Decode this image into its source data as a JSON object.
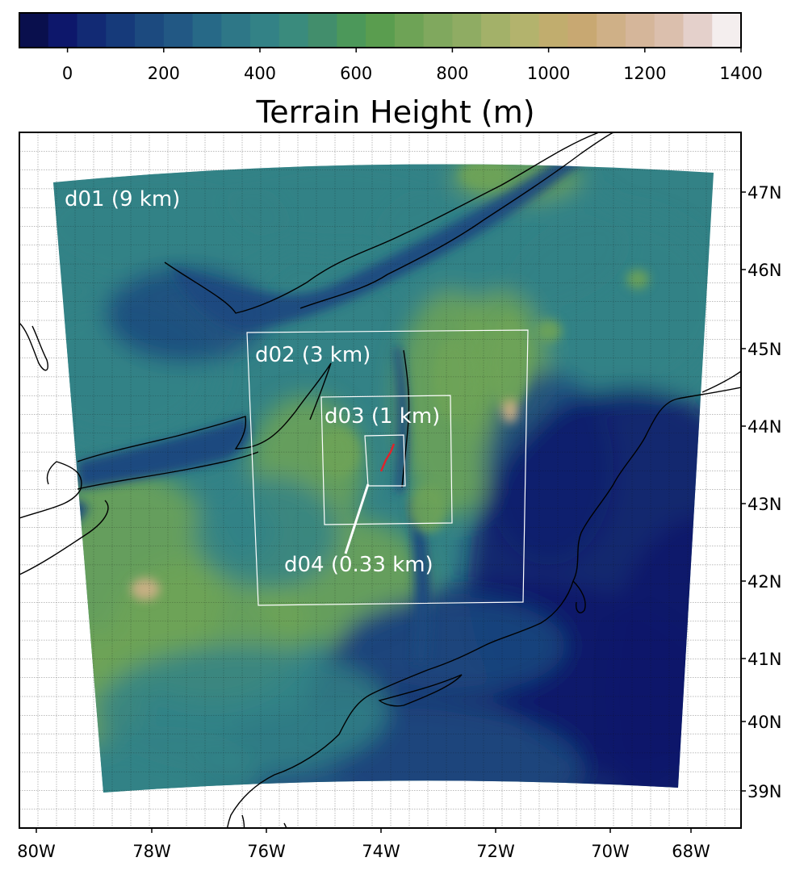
{
  "colorbar": {
    "title": "Terrain Height (m)",
    "vmin": -100,
    "vmax": 1400,
    "ticks": [
      0,
      200,
      400,
      600,
      800,
      1000,
      1200,
      1400
    ],
    "colors": [
      "#090f4d",
      "#0d176b",
      "#122a74",
      "#163a7a",
      "#1c4a7f",
      "#225884",
      "#276987",
      "#2e7787",
      "#338286",
      "#3a8b7d",
      "#428e6c",
      "#4c985a",
      "#5a9d4f",
      "#6ea356",
      "#80a85e",
      "#8fac63",
      "#a3b169",
      "#b3b36d",
      "#c1ad6e",
      "#c8a872",
      "#cfb087",
      "#d5b69a",
      "#dbbfad",
      "#e4d0cb",
      "#f4eeee"
    ]
  },
  "map": {
    "lon_ticks": [
      "80W",
      "78W",
      "76W",
      "74W",
      "72W",
      "70W",
      "68W"
    ],
    "lat_ticks": [
      "47N",
      "46N",
      "45N",
      "44N",
      "43N",
      "42N",
      "41N",
      "40N",
      "39N"
    ],
    "domains": [
      {
        "id": "d01",
        "label": "d01 (9 km)"
      },
      {
        "id": "d02",
        "label": "d02 (3 km)"
      },
      {
        "id": "d03",
        "label": "d03 (1 km)"
      },
      {
        "id": "d04",
        "label": "d04 (0.33 km)"
      }
    ],
    "colors": {
      "ocean": "#0d176b",
      "lowland": "#1c4a7f",
      "mid": "#338286",
      "high": "#6ea356",
      "peak": "#cfb087",
      "coast": "#000000",
      "domain_box": "#ffffff",
      "transect": "#e0232b"
    }
  }
}
